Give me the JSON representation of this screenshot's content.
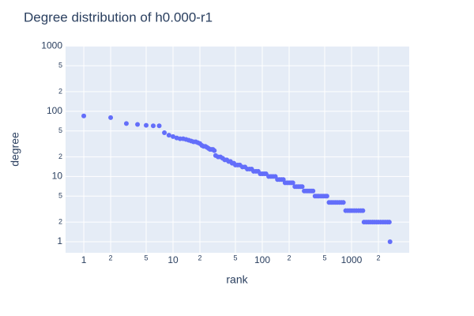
{
  "chart_data": {
    "type": "scatter",
    "title": "Degree distribution of h0.000-r1",
    "x_label": "rank",
    "y_label": "degree",
    "log_x": true,
    "log_y": true,
    "grid": true,
    "color": "#636efa",
    "xlim": [
      0.625,
      4430
    ],
    "ylim": [
      0.676,
      1010
    ],
    "xticks": [
      1,
      2,
      5,
      10,
      {
        "value": 20,
        "label": "2"
      },
      {
        "value": 50,
        "label": "5"
      },
      100,
      {
        "value": 200,
        "label": "2"
      },
      {
        "value": 500,
        "label": "5"
      },
      1000,
      {
        "value": 2000,
        "label": "2"
      }
    ],
    "yticks": [
      1,
      2,
      5,
      10,
      {
        "value": 20,
        "label": "2"
      },
      {
        "value": 50,
        "label": "5"
      },
      100,
      {
        "value": 200,
        "label": "2"
      },
      {
        "value": 500,
        "label": "5"
      },
      1000
    ],
    "x": [
      1,
      2,
      3,
      4,
      5,
      6,
      7,
      8,
      9,
      10,
      11,
      12,
      13,
      14,
      15,
      16,
      17,
      18,
      19,
      20,
      21,
      22,
      23,
      24,
      25,
      26,
      27,
      28,
      29,
      30,
      32,
      34,
      36,
      38,
      40,
      42,
      44,
      46,
      48,
      50,
      53,
      56,
      60,
      64,
      68,
      72,
      76,
      80,
      85,
      90,
      95,
      100,
      105,
      110,
      118,
      125,
      132,
      140,
      148,
      156,
      164,
      172,
      180,
      190,
      200,
      210,
      220,
      232,
      244,
      256,
      268,
      280,
      295,
      310,
      325,
      340,
      355,
      370,
      390,
      410,
      430,
      455,
      480,
      505,
      530,
      560,
      590,
      620,
      655,
      690,
      730,
      770,
      810,
      860,
      910,
      960,
      1010,
      1070,
      1130,
      1200,
      1270,
      1340,
      1380,
      1460,
      1540,
      1620,
      1710,
      1800,
      1900,
      2000,
      2120,
      2250,
      2380,
      2520,
      2650,
      2700
    ],
    "y": [
      85,
      80,
      65,
      63,
      61,
      60,
      60,
      47,
      43,
      41,
      39,
      38,
      38,
      37,
      36,
      35,
      34,
      34,
      33,
      32,
      30,
      29,
      29,
      28,
      27,
      26,
      26,
      26,
      25,
      21,
      20,
      20,
      19,
      18,
      18,
      17,
      17,
      16,
      16,
      15,
      15,
      15,
      14,
      14,
      13,
      13,
      13,
      12,
      12,
      12,
      11,
      11,
      11,
      11,
      10,
      10,
      10,
      10,
      9,
      9,
      9,
      9,
      8,
      8,
      8,
      8,
      8,
      7,
      7,
      7,
      7,
      7,
      6,
      6,
      6,
      6,
      6,
      6,
      5,
      5,
      5,
      5,
      5,
      5,
      5,
      4,
      4,
      4,
      4,
      4,
      4,
      4,
      4,
      3,
      3,
      3,
      3,
      3,
      3,
      3,
      3,
      3,
      2,
      2,
      2,
      2,
      2,
      2,
      2,
      2,
      2,
      2,
      2,
      2,
      2,
      1
    ]
  }
}
